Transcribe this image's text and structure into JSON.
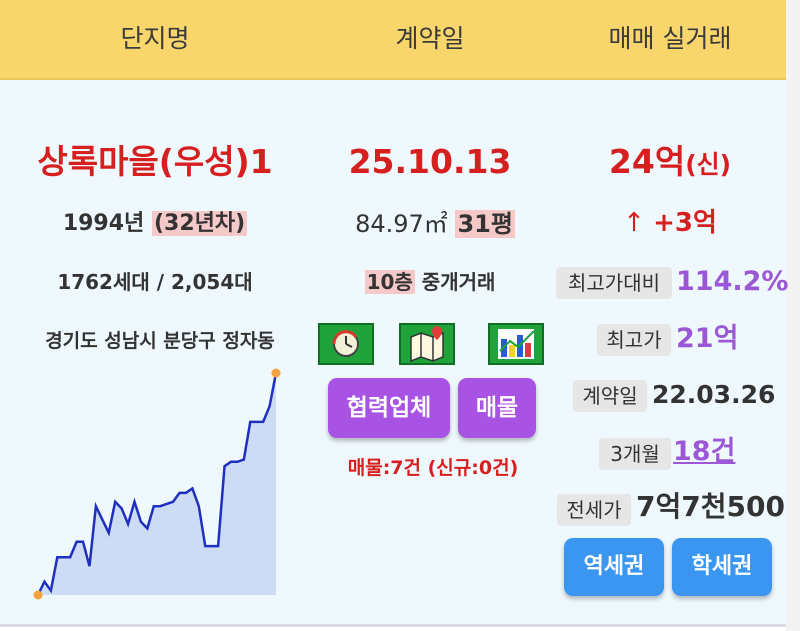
{
  "header": {
    "col1": "단지명",
    "col2": "계약일",
    "col3": "매매 실거래"
  },
  "complex": {
    "name": "상록마을(우성)1",
    "year": "1994년",
    "age": "(32년차)",
    "households": "1762세대 / 2,054대",
    "address": "경기도 성남시 분당구 정자동"
  },
  "contract": {
    "date": "25.10.13",
    "area": "84.97㎡",
    "pyeong": "31평",
    "floor": "10층",
    "type": "중개거래",
    "partner_button": "협력업체",
    "listing_button": "매물",
    "listing_count": "매물:7건 (신규:0건)"
  },
  "trade": {
    "price": "24억",
    "price_tag": "(신)",
    "change_arrow": "↑",
    "change": "+3억",
    "vs_high_label": "최고가대비",
    "vs_high_value": "114.2%",
    "high_label": "최고가",
    "high_value": "21억",
    "contract_label": "계약일",
    "contract_value": "22.03.26",
    "three_month_label": "3개월",
    "three_month_value": "18건",
    "jeonse_label": "전세가",
    "jeonse_value": "7억7천500",
    "station_button": "역세권",
    "school_button": "학세권"
  },
  "icons": {
    "history": "history-clock-icon",
    "map": "map-pin-icon",
    "chart": "bar-chart-trend-icon"
  },
  "chart_data": {
    "type": "area",
    "values": [
      0,
      6,
      2,
      17,
      17,
      17,
      24,
      24,
      13,
      40,
      34,
      28,
      42,
      39,
      32,
      42,
      33,
      30,
      40,
      40,
      41,
      42,
      46,
      46,
      48,
      40,
      22,
      22,
      22,
      58,
      60,
      60,
      61,
      78,
      78,
      78,
      85,
      100
    ],
    "colors": {
      "line": "#1f2fbf",
      "fill": "#ccdcf4",
      "end_point": "#f4a23c"
    }
  }
}
